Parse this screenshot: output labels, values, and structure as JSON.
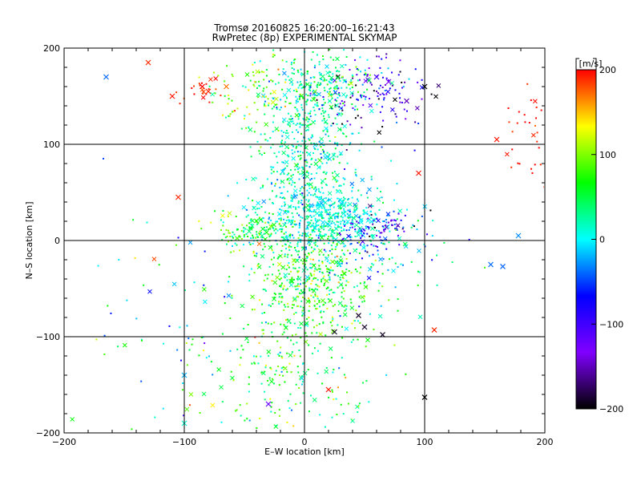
{
  "chart_data": {
    "type": "scatter",
    "title": "Tromsø 20160825 16:20:00–16:21:43",
    "subtitle": "RwPretec (8p) EXPERIMENTAL SKYMAP",
    "xlabel": "E–W location [km]",
    "ylabel": "N–S location [km]",
    "xlim": [
      -200,
      200
    ],
    "ylim": [
      -200,
      200
    ],
    "xticks": [
      "−200",
      "−100",
      "0",
      "100",
      "200"
    ],
    "yticks": [
      "−200",
      "−100",
      "0",
      "100",
      "200"
    ],
    "grid": true,
    "colorbar": {
      "label": "[m/s]",
      "range": [
        -200,
        200
      ],
      "ticks": [
        "200",
        "100",
        "0",
        "−100",
        "−200"
      ],
      "colors": [
        "#000000",
        "#8000ff",
        "#0000ff",
        "#00ffff",
        "#00ff00",
        "#ffff00",
        "#ff0000"
      ]
    },
    "markers": {
      "small": "dot",
      "large": "cross"
    },
    "clusters": [
      {
        "x": 0,
        "y": 100,
        "sx": 22,
        "sy": 45,
        "n": 520,
        "vmean": 20,
        "vsd": 30
      },
      {
        "x": 15,
        "y": 25,
        "sx": 25,
        "sy": 18,
        "n": 480,
        "vmean": 5,
        "vsd": 20
      },
      {
        "x": -40,
        "y": 10,
        "sx": 18,
        "sy": 12,
        "n": 150,
        "vmean": 60,
        "vsd": 40
      },
      {
        "x": 5,
        "y": -45,
        "sx": 22,
        "sy": 28,
        "n": 420,
        "vmean": 70,
        "vsd": 35
      },
      {
        "x": -15,
        "y": -130,
        "sx": 40,
        "sy": 35,
        "n": 220,
        "vmean": 55,
        "vsd": 40
      },
      {
        "x": 60,
        "y": 10,
        "sx": 18,
        "sy": 10,
        "n": 110,
        "vmean": -90,
        "vsd": 50
      },
      {
        "x": 55,
        "y": 150,
        "sx": 22,
        "sy": 22,
        "n": 140,
        "vmean": -120,
        "vsd": 55
      },
      {
        "x": 20,
        "y": 165,
        "sx": 18,
        "sy": 15,
        "n": 150,
        "vmean": 30,
        "vsd": 35
      },
      {
        "x": -40,
        "y": 150,
        "sx": 18,
        "sy": 18,
        "n": 90,
        "vmean": 100,
        "vsd": 45
      },
      {
        "x": 190,
        "y": 110,
        "sx": 10,
        "sy": 25,
        "n": 35,
        "vmean": 195,
        "vsd": 10
      },
      {
        "x": 50,
        "y": -20,
        "sx": 35,
        "sy": 30,
        "n": 130,
        "vmean": 10,
        "vsd": 40
      },
      {
        "x": -110,
        "y": -80,
        "sx": 35,
        "sy": 60,
        "n": 60,
        "vmean": 30,
        "vsd": 60
      },
      {
        "x": -85,
        "y": 155,
        "sx": 10,
        "sy": 8,
        "n": 20,
        "vmean": 190,
        "vsd": 10
      }
    ],
    "large_points": [
      {
        "x": -165,
        "y": 170,
        "v": -40
      },
      {
        "x": -130,
        "y": 185,
        "v": 190
      },
      {
        "x": -110,
        "y": 150,
        "v": 195
      },
      {
        "x": -85,
        "y": 160,
        "v": 200
      },
      {
        "x": -80,
        "y": 155,
        "v": 190
      },
      {
        "x": -65,
        "y": 160,
        "v": 170
      },
      {
        "x": -105,
        "y": 45,
        "v": 190
      },
      {
        "x": 100,
        "y": 160,
        "v": -200
      },
      {
        "x": 160,
        "y": 105,
        "v": 195
      },
      {
        "x": 95,
        "y": 70,
        "v": 195
      },
      {
        "x": 178,
        "y": 5,
        "v": -30
      },
      {
        "x": 155,
        "y": -25,
        "v": -40
      },
      {
        "x": 165,
        "y": -27,
        "v": -40
      },
      {
        "x": 108,
        "y": -93,
        "v": 190
      },
      {
        "x": 100,
        "y": -163,
        "v": -200
      },
      {
        "x": 20,
        "y": -155,
        "v": 195
      },
      {
        "x": -30,
        "y": -170,
        "v": -120
      },
      {
        "x": -100,
        "y": -190,
        "v": 10
      },
      {
        "x": -100,
        "y": -140,
        "v": -20
      },
      {
        "x": 50,
        "y": -90,
        "v": -190
      },
      {
        "x": 65,
        "y": -98,
        "v": -190
      },
      {
        "x": 25,
        "y": -95,
        "v": -190
      },
      {
        "x": 45,
        "y": -78,
        "v": -190
      },
      {
        "x": 85,
        "y": 145,
        "v": -150
      },
      {
        "x": 70,
        "y": 165,
        "v": -130
      },
      {
        "x": 60,
        "y": 170,
        "v": -100
      }
    ]
  }
}
